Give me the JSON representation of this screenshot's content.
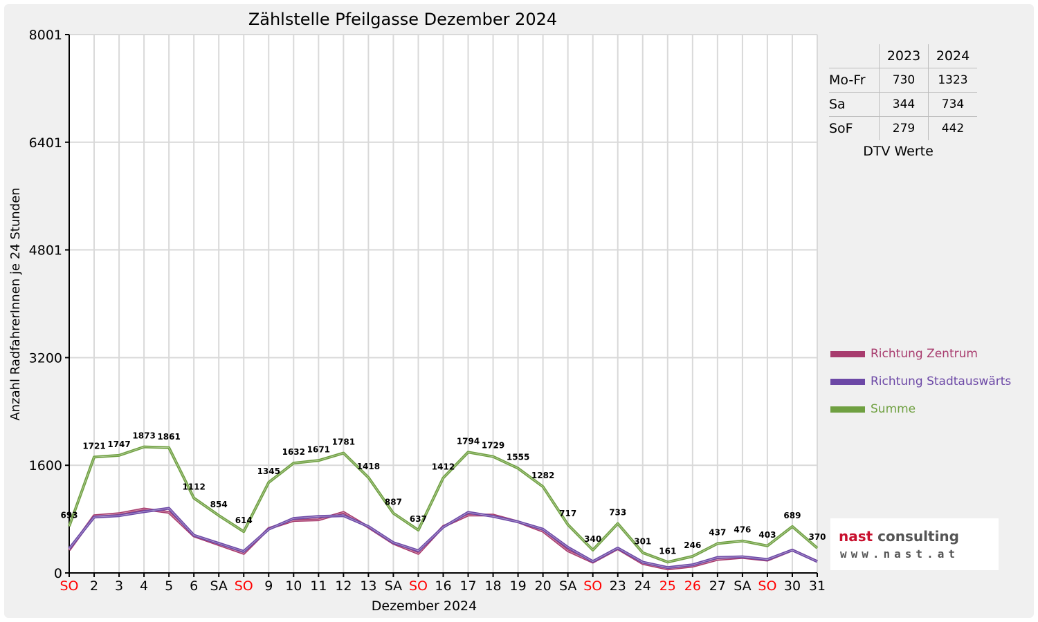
{
  "colors": {
    "background": "#f0f0f0",
    "plot_background": "#ffffff",
    "grid": "#d9d9d9",
    "zentrum": "#a83c6e",
    "stadtauswaerts": "#6c48a6",
    "summe": "#6fa041",
    "weekend_label": "#ff0000",
    "logo_red": "#c8102e",
    "logo_grey": "#555555"
  },
  "chart_data": {
    "type": "line",
    "title": "Zählstelle Pfeilgasse Dezember 2024",
    "xlabel": "Dezember 2024",
    "ylabel": "Anzahl RadfahrerInnen je 24 Stunden",
    "ylim": [
      0,
      8001
    ],
    "yticks": [
      "0",
      "1600",
      "3200",
      "4801",
      "6401",
      "8001"
    ],
    "categories": [
      "SO",
      "2",
      "3",
      "4",
      "5",
      "6",
      "SA",
      "SO",
      "9",
      "10",
      "11",
      "12",
      "13",
      "SA",
      "SO",
      "16",
      "17",
      "18",
      "19",
      "20",
      "SA",
      "SO",
      "23",
      "24",
      "25",
      "26",
      "27",
      "SA",
      "SO",
      "30",
      "31"
    ],
    "red_categories": [
      0,
      7,
      14,
      21,
      24,
      25,
      28
    ],
    "grid": true,
    "legend_position": "right",
    "series": [
      {
        "name": "Richtung Zentrum",
        "color": "#a83c6e",
        "values": [
          340,
          850,
          880,
          950,
          900,
          550,
          420,
          290,
          660,
          780,
          790,
          900,
          680,
          440,
          290,
          690,
          860,
          860,
          760,
          620,
          330,
          160,
          360,
          140,
          60,
          100,
          200,
          230,
          190,
          340,
          170
        ]
      },
      {
        "name": "Richtung Stadtauswärts",
        "color": "#6c48a6",
        "values": [
          360,
          830,
          850,
          910,
          960,
          560,
          440,
          320,
          650,
          810,
          840,
          850,
          690,
          450,
          330,
          680,
          900,
          840,
          760,
          650,
          380,
          170,
          370,
          160,
          80,
          120,
          230,
          240,
          200,
          340,
          170
        ]
      },
      {
        "name": "Summe",
        "color": "#6fa041",
        "values": [
          693,
          1721,
          1747,
          1873,
          1861,
          1112,
          854,
          614,
          1345,
          1632,
          1671,
          1781,
          1418,
          887,
          637,
          1412,
          1794,
          1729,
          1555,
          1282,
          717,
          340,
          733,
          301,
          161,
          246,
          437,
          476,
          403,
          689,
          370
        ],
        "labels": [
          "693",
          "1721",
          "1747",
          "1873",
          "1861",
          "1112",
          "854",
          "614",
          "1345",
          "1632",
          "1671",
          "1781",
          "1418",
          "887",
          "637",
          "1412",
          "1794",
          "1729",
          "1555",
          "1282",
          "717",
          "340",
          "733",
          "301",
          "161",
          "246",
          "437",
          "476",
          "403",
          "689",
          "370"
        ]
      }
    ]
  },
  "dtv_table": {
    "headers": [
      "",
      "2023",
      "2024"
    ],
    "rows": [
      {
        "label": "Mo-Fr",
        "v2023": "730",
        "v2024": "1323"
      },
      {
        "label": "Sa",
        "v2023": "344",
        "v2024": "734"
      },
      {
        "label": "SoF",
        "v2023": "279",
        "v2024": "442"
      }
    ],
    "caption": "DTV Werte"
  },
  "logo": {
    "word1": "nast",
    "word2": "consulting",
    "url": "www.nast.at"
  }
}
